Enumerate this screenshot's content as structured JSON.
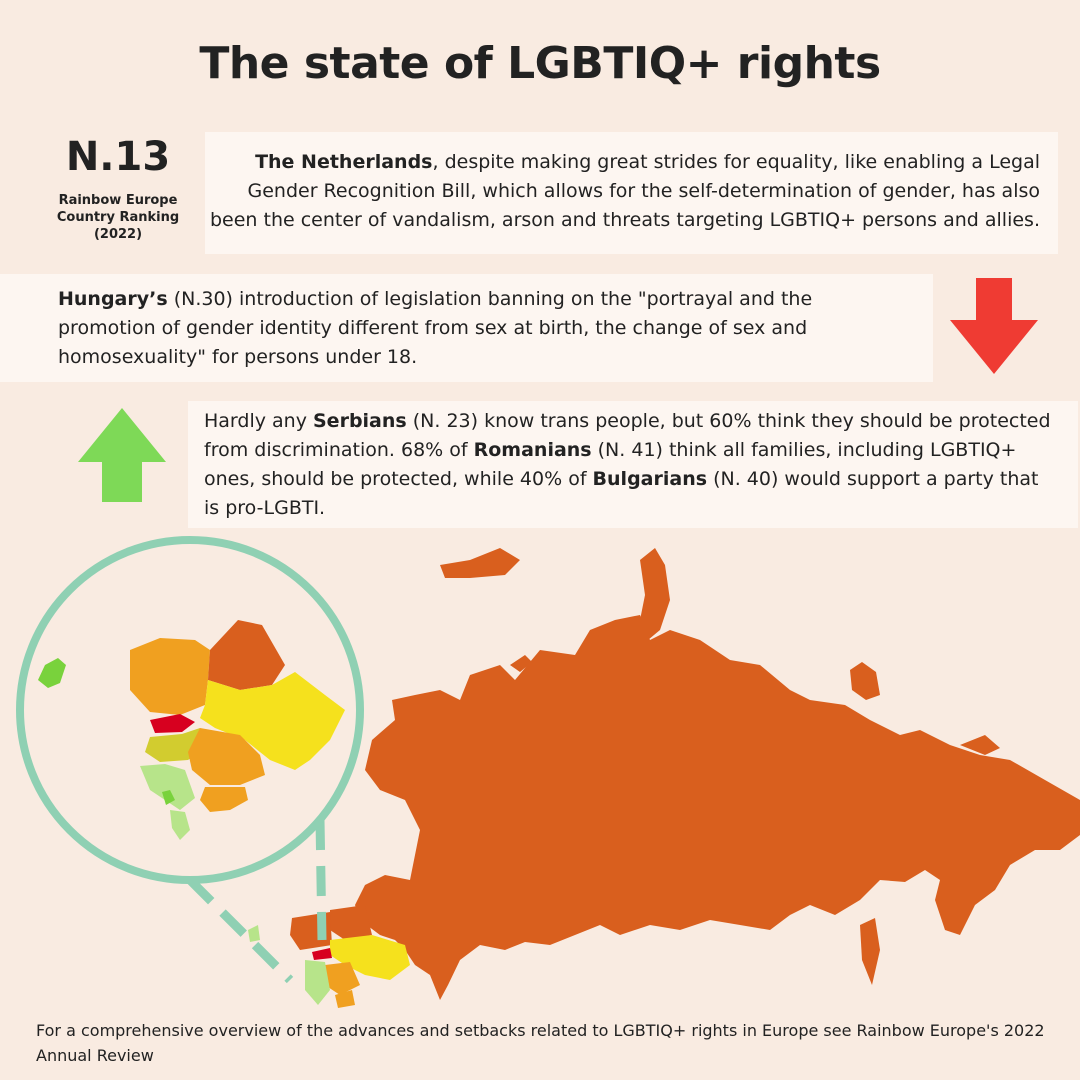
{
  "title": "The state of LGBTIQ+ rights",
  "ranking": {
    "number": "N.13",
    "label": "Rainbow Europe\nCountry Ranking\n(2022)"
  },
  "netherlands": {
    "name": "The Netherlands",
    "text": ", despite making great strides for equality, like enabling a Legal Gender Recognition Bill, which allows for the self-determination of gender, has also been the center of vandalism, arson and threats targeting LGBTIQ+  persons and allies."
  },
  "hungary": {
    "name": "Hungary’s",
    "text": " (N.30) introduction of legislation banning on the \"portrayal and the promotion of gender identity different from sex at birth, the change of sex and homosexuality\" for persons under 18."
  },
  "balkans": {
    "t1": "Hardly any ",
    "serbians": "Serbians",
    "t2": " (N. 23) know trans people, but 60% think they should be protected from discrimination. 68% of ",
    "romanians": "Romanians",
    "t3": " (N. 41)  think all families, including LGBTIQ+ ones, should be protected, while 40% of ",
    "bulgarians": "Bulgarians",
    "t4": " (N. 40) would support a party that is pro-LGBTI."
  },
  "footer": "For a comprehensive overview of the advances and setbacks related to LGBTIQ+ rights in Europe see Rainbow Europe's 2022 Annual Review",
  "colors": {
    "background": "#f9ebe1",
    "box": "#fdf6f1",
    "arrow_down": "#ef3b33",
    "arrow_up": "#7ed957",
    "lens": "#8fd0b3",
    "russia": "#d95f1e",
    "poland": "#f0a020",
    "belarus": "#d95f1e",
    "ukraine": "#f5e11d",
    "slovakia": "#d7001f",
    "hungary": "#d2cc2f",
    "romania": "#f0a020",
    "bulgaria": "#f0a020",
    "serbia_region": "#b7e48a",
    "netherlands": "#79d23c"
  },
  "icons": {
    "down_arrow": "down-arrow-icon",
    "up_arrow": "up-arrow-icon"
  }
}
